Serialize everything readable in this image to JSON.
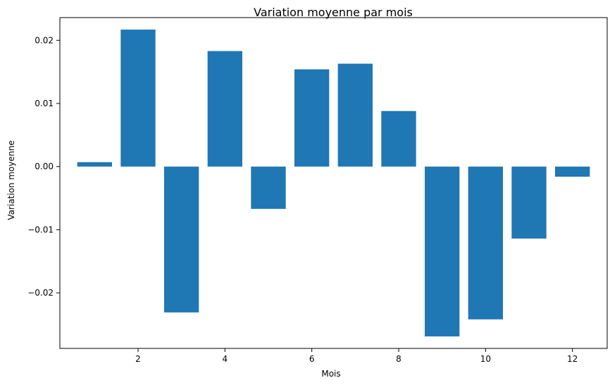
{
  "chart_data": {
    "type": "bar",
    "title": "Variation moyenne par mois",
    "xlabel": "Mois",
    "ylabel": "Variation moyenne",
    "categories": [
      1,
      2,
      3,
      4,
      5,
      6,
      7,
      8,
      9,
      10,
      11,
      12
    ],
    "values": [
      0.0007,
      0.0217,
      -0.0231,
      0.0183,
      -0.0067,
      0.0154,
      0.0163,
      0.0088,
      -0.0269,
      -0.0242,
      -0.0114,
      -0.0016
    ],
    "xlim": [
      0.2,
      12.8
    ],
    "ylim": [
      -0.0288,
      0.0236
    ],
    "xticks": [
      2,
      4,
      6,
      8,
      10,
      12
    ],
    "xtick_labels": [
      "2",
      "4",
      "6",
      "8",
      "10",
      "12"
    ],
    "yticks": [
      0.02,
      0.01,
      0.0,
      -0.01,
      -0.02
    ],
    "ytick_labels": [
      "0.02",
      "0.01",
      "0.00",
      "−0.01",
      "−0.02"
    ],
    "bar_color": "#1f77b4",
    "grid": false,
    "legend": "none"
  }
}
